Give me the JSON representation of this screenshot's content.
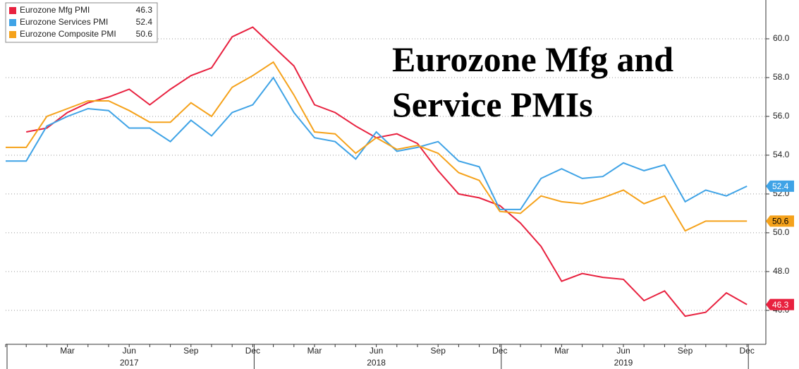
{
  "chart_data": {
    "type": "line",
    "title": "Eurozone Mfg and Service PMIs",
    "categories": [
      null,
      null,
      null,
      "Mar",
      null,
      null,
      "Jun",
      null,
      null,
      "Sep",
      null,
      null,
      "Dec",
      null,
      null,
      "Mar",
      null,
      null,
      "Jun",
      null,
      null,
      "Sep",
      null,
      null,
      "Dec",
      null,
      null,
      "Mar",
      null,
      null,
      "Jun",
      null,
      null,
      "Sep",
      null,
      null,
      "Dec"
    ],
    "years": [
      "2017",
      "2018",
      "2019"
    ],
    "series": [
      {
        "name": "Eurozone Mfg PMI",
        "color": "#e8213f",
        "values": [
          null,
          55.2,
          55.4,
          56.2,
          56.7,
          57.0,
          57.4,
          56.6,
          57.4,
          58.1,
          58.5,
          60.1,
          60.6,
          59.6,
          58.6,
          56.6,
          56.2,
          55.5,
          54.9,
          55.1,
          54.6,
          53.2,
          52.0,
          51.8,
          51.4,
          50.5,
          49.3,
          47.5,
          47.9,
          47.7,
          47.6,
          46.5,
          47.0,
          45.7,
          45.9,
          46.9,
          46.3
        ]
      },
      {
        "name": "Eurozone Services PMI",
        "color": "#3fa3e6",
        "values": [
          53.7,
          53.7,
          55.5,
          56.0,
          56.4,
          56.3,
          55.4,
          55.4,
          54.7,
          55.8,
          55.0,
          56.2,
          56.6,
          58.0,
          56.2,
          54.9,
          54.7,
          53.8,
          55.2,
          54.2,
          54.4,
          54.7,
          53.7,
          53.4,
          51.2,
          51.2,
          52.8,
          53.3,
          52.8,
          52.9,
          53.6,
          53.2,
          53.5,
          51.6,
          52.2,
          51.9,
          52.4
        ]
      },
      {
        "name": "Eurozone Composite PMI",
        "color": "#f5a21b",
        "values": [
          54.4,
          54.4,
          56.0,
          56.4,
          56.8,
          56.8,
          56.3,
          55.7,
          55.7,
          56.7,
          56.0,
          57.5,
          58.1,
          58.8,
          57.1,
          55.2,
          55.1,
          54.1,
          54.9,
          54.3,
          54.5,
          54.1,
          53.1,
          52.7,
          51.1,
          51.0,
          51.9,
          51.6,
          51.5,
          51.8,
          52.2,
          51.5,
          51.9,
          50.1,
          50.6,
          50.6,
          50.6
        ]
      }
    ],
    "ylim": [
      44.25,
      62
    ],
    "yticks": [
      {
        "value": 46,
        "label": "46.0"
      },
      {
        "value": 48,
        "label": "48.0"
      },
      {
        "value": 50,
        "label": "50.0"
      },
      {
        "value": 52,
        "label": "52.0"
      },
      {
        "value": 54,
        "label": "54.0"
      },
      {
        "value": 56,
        "label": "56.0"
      },
      {
        "value": 58,
        "label": "58.0"
      },
      {
        "value": 60,
        "label": "60.0"
      }
    ],
    "grid": true
  }
}
